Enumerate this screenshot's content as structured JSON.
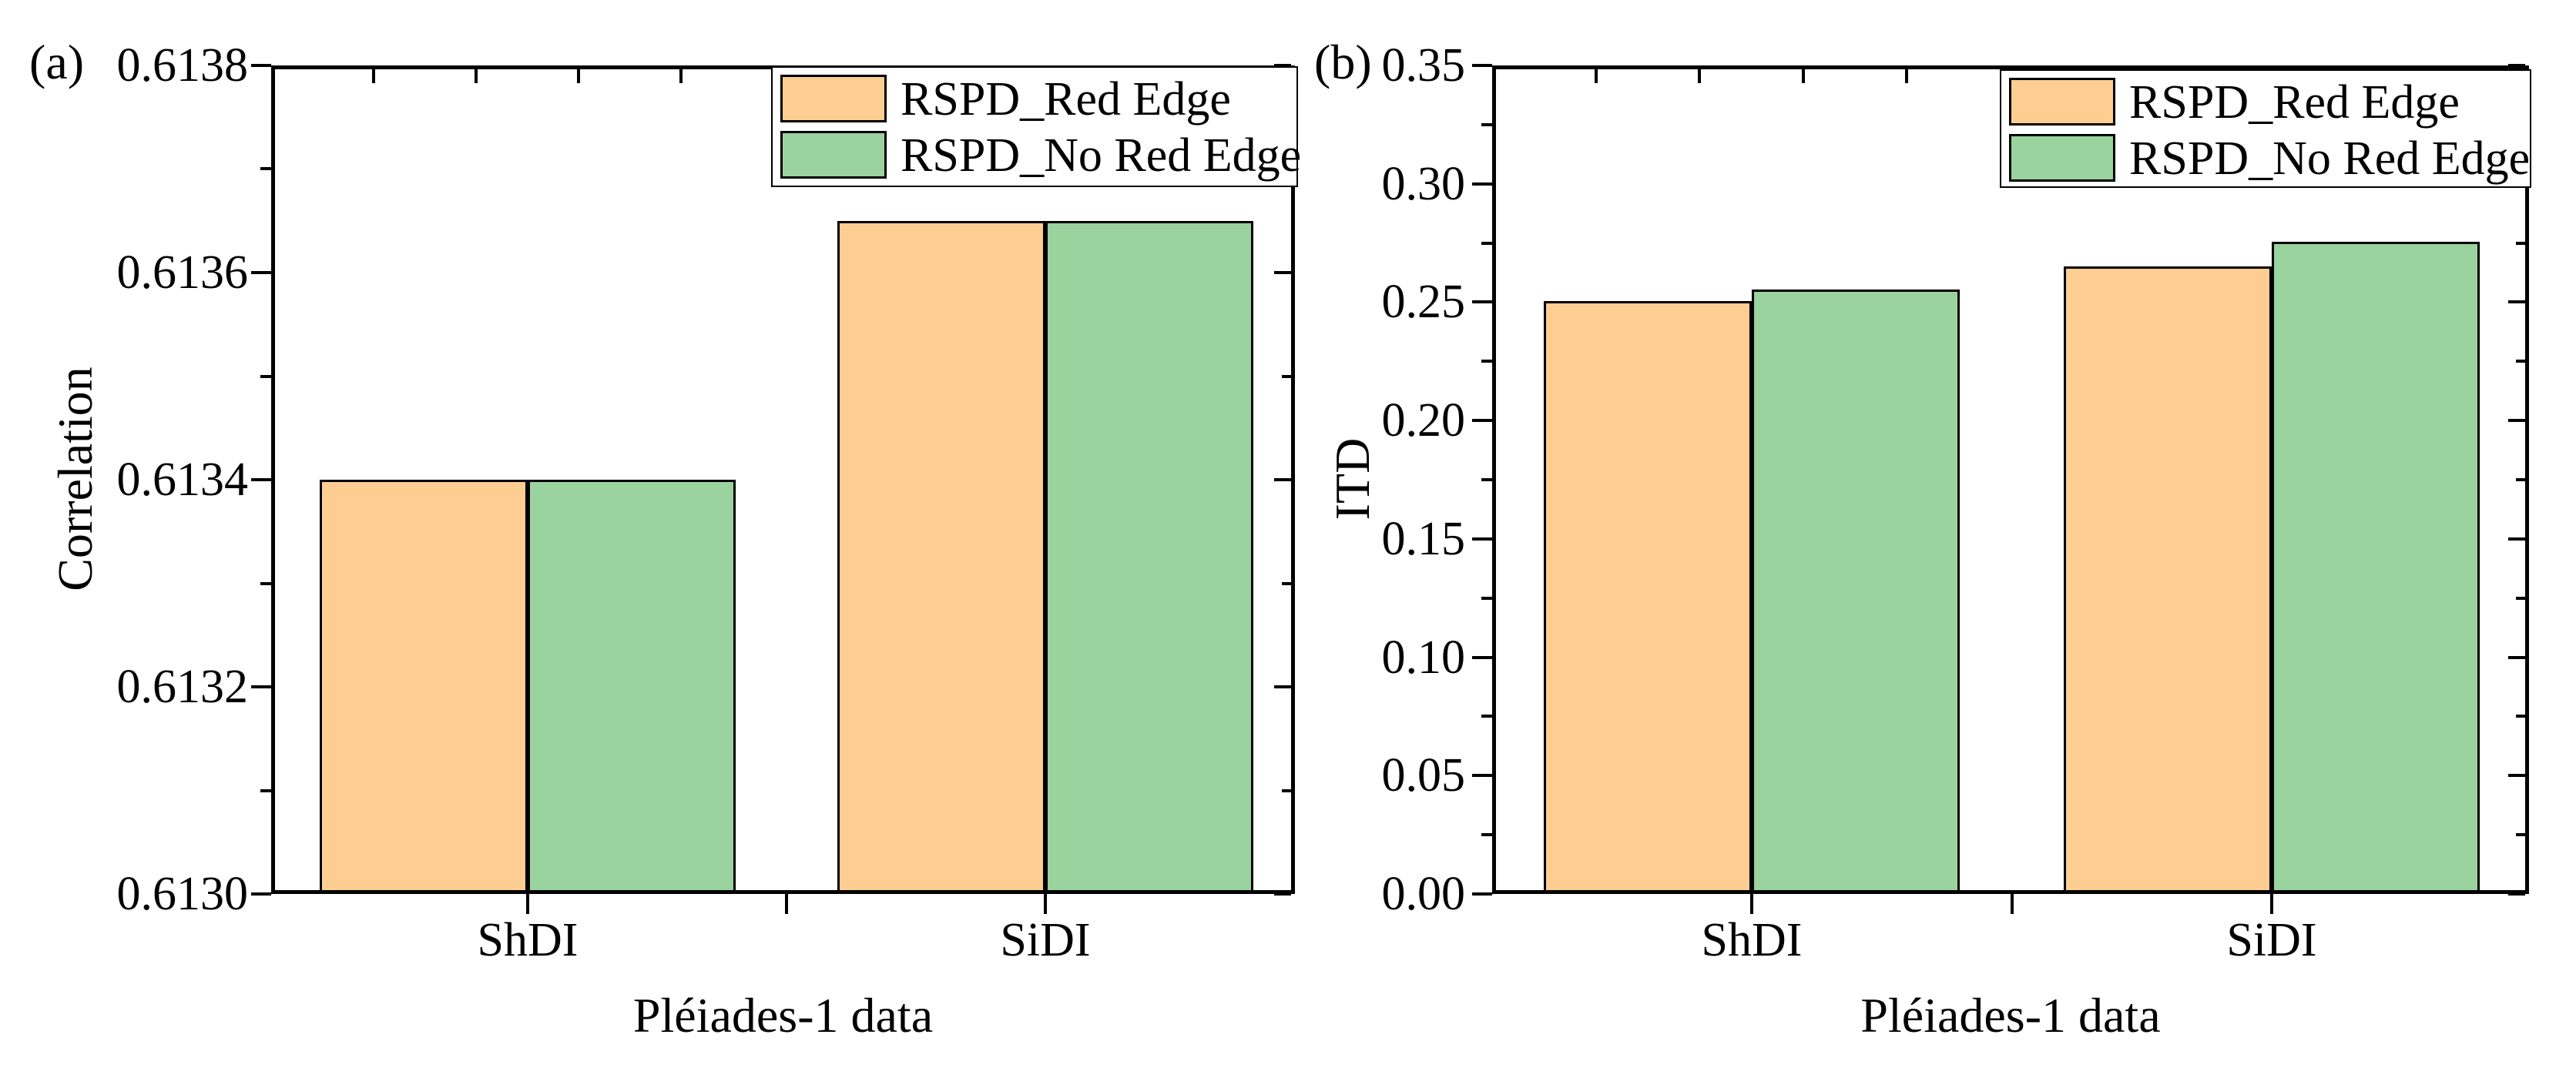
{
  "figure_title": "",
  "chart_data": [
    {
      "type": "bar",
      "tag": "(a)",
      "ylabel": "Correlation",
      "xlabel": "Pléiades-1 data",
      "categories": [
        "ShDI",
        "SiDI"
      ],
      "series": [
        {
          "name": "RSPD_Red Edge",
          "color": "#FDCD92",
          "values": [
            0.6134,
            0.61365
          ]
        },
        {
          "name": "RSPD_No Red Edge",
          "color": "#9AD39D",
          "values": [
            0.6134,
            0.61365
          ]
        }
      ],
      "ylim": [
        0.613,
        0.6138
      ],
      "ytick_step": 0.0002,
      "ytick_decimals": 4,
      "ytick_labels": [
        "0.6130",
        "0.6132",
        "0.6134",
        "0.6136",
        "0.6138"
      ],
      "legend_position": "top-right",
      "grid": false
    },
    {
      "type": "bar",
      "tag": "(b)",
      "ylabel": "ITD",
      "xlabel": "Pléiades-1 data",
      "categories": [
        "ShDI",
        "SiDI"
      ],
      "series": [
        {
          "name": "RSPD_Red Edge",
          "color": "#FDCD92",
          "values": [
            0.2505,
            0.265
          ]
        },
        {
          "name": "RSPD_No Red Edge",
          "color": "#9AD39D",
          "values": [
            0.2555,
            0.2755
          ]
        }
      ],
      "ylim": [
        0,
        0.35
      ],
      "ytick_step": 0.05,
      "ytick_decimals": 2,
      "ytick_labels": [
        "0.00",
        "0.05",
        "0.10",
        "0.15",
        "0.20",
        "0.25",
        "0.30",
        "0.35"
      ],
      "legend_position": "top-right",
      "grid": false
    }
  ],
  "colors": {
    "bar_orange": "#FDCD92",
    "bar_green": "#9AD39D",
    "axis": "#000000",
    "background": "#ffffff"
  }
}
